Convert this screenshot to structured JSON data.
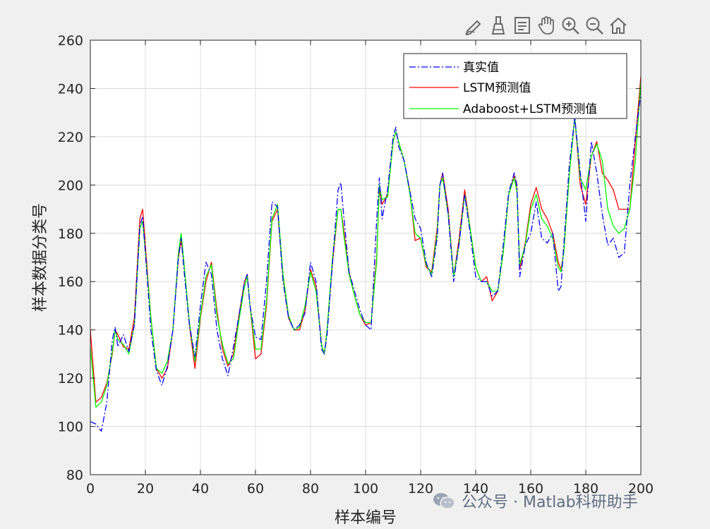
{
  "toolbar": {
    "buttons": [
      {
        "name": "edit-plot-icon"
      },
      {
        "name": "brush-icon"
      },
      {
        "name": "data-tips-icon"
      },
      {
        "name": "pan-hand-icon"
      },
      {
        "name": "zoom-in-icon"
      },
      {
        "name": "zoom-out-icon"
      },
      {
        "name": "home-icon"
      }
    ]
  },
  "watermark": {
    "text": "公众号 · Matlab科研助手"
  },
  "chart_data": {
    "type": "line",
    "title": "",
    "xlabel": "样本编号",
    "ylabel": "样本数据分类号",
    "xlim": [
      0,
      200
    ],
    "ylim": [
      80,
      260
    ],
    "xticks": [
      0,
      20,
      40,
      60,
      80,
      100,
      120,
      140,
      160,
      180,
      200
    ],
    "yticks": [
      80,
      100,
      120,
      140,
      160,
      180,
      200,
      220,
      240,
      260
    ],
    "grid": true,
    "legend_position": "top-right",
    "x": [
      0,
      2,
      4,
      6,
      8,
      9,
      10,
      12,
      14,
      16,
      18,
      19,
      20,
      22,
      24,
      26,
      28,
      30,
      32,
      33,
      34,
      36,
      38,
      40,
      42,
      44,
      46,
      48,
      50,
      52,
      54,
      56,
      57,
      58,
      60,
      62,
      64,
      66,
      68,
      70,
      72,
      74,
      76,
      78,
      80,
      82,
      84,
      85,
      86,
      88,
      90,
      91,
      92,
      94,
      96,
      98,
      100,
      102,
      104,
      105,
      106,
      108,
      110,
      111,
      112,
      114,
      116,
      118,
      120,
      122,
      124,
      126,
      127,
      128,
      130,
      132,
      134,
      136,
      138,
      140,
      142,
      144,
      146,
      148,
      150,
      152,
      154,
      155,
      156,
      158,
      160,
      162,
      164,
      166,
      168,
      170,
      171,
      172,
      174,
      176,
      178,
      180,
      182,
      184,
      186,
      188,
      190,
      192,
      194,
      196,
      198,
      200
    ],
    "series": [
      {
        "name": "真实值",
        "color": "#0000ff",
        "dash": "dashdot",
        "values": [
          102,
          101,
          98,
          110,
          136,
          141,
          133,
          138,
          131,
          142,
          183,
          187,
          172,
          140,
          123,
          117,
          125,
          140,
          170,
          178,
          165,
          142,
          129,
          150,
          168,
          163,
          140,
          128,
          121,
          133,
          146,
          160,
          163,
          150,
          137,
          136,
          160,
          193,
          191,
          160,
          145,
          140,
          142,
          147,
          168,
          160,
          132,
          130,
          138,
          168,
          198,
          201,
          188,
          164,
          156,
          148,
          142,
          140,
          185,
          203,
          186,
          198,
          220,
          224,
          216,
          210,
          198,
          186,
          182,
          168,
          162,
          178,
          200,
          205,
          188,
          160,
          176,
          196,
          180,
          162,
          160,
          160,
          154,
          156,
          175,
          197,
          205,
          200,
          162,
          175,
          180,
          193,
          178,
          176,
          180,
          156,
          158,
          175,
          208,
          228,
          205,
          185,
          218,
          205,
          188,
          175,
          178,
          170,
          172,
          200,
          220,
          238
        ]
      },
      {
        "name": "LSTM预测值",
        "color": "#ff0000",
        "dash": "solid",
        "values": [
          140,
          110,
          112,
          118,
          130,
          140,
          138,
          133,
          132,
          145,
          186,
          190,
          175,
          145,
          124,
          120,
          124,
          140,
          170,
          177,
          168,
          142,
          124,
          145,
          160,
          168,
          148,
          132,
          125,
          130,
          146,
          160,
          163,
          150,
          128,
          130,
          150,
          185,
          190,
          162,
          145,
          140,
          140,
          148,
          165,
          158,
          134,
          130,
          140,
          168,
          190,
          190,
          182,
          164,
          154,
          146,
          142,
          143,
          170,
          198,
          192,
          196,
          218,
          222,
          218,
          210,
          198,
          177,
          178,
          166,
          164,
          182,
          200,
          205,
          190,
          162,
          178,
          198,
          182,
          166,
          160,
          162,
          152,
          156,
          172,
          196,
          204,
          198,
          165,
          176,
          192,
          199,
          190,
          186,
          180,
          168,
          165,
          172,
          204,
          228,
          200,
          192,
          212,
          218,
          205,
          202,
          198,
          190,
          190,
          190,
          218,
          245
        ]
      },
      {
        "name": "Adaboost+LSTM预测值",
        "color": "#00ff00",
        "dash": "solid",
        "values": [
          133,
          108,
          110,
          117,
          131,
          140,
          136,
          134,
          130,
          142,
          182,
          185,
          172,
          145,
          124,
          122,
          127,
          140,
          172,
          180,
          168,
          143,
          127,
          146,
          162,
          167,
          146,
          134,
          126,
          128,
          144,
          158,
          162,
          150,
          132,
          132,
          152,
          186,
          192,
          163,
          146,
          140,
          141,
          150,
          164,
          156,
          134,
          130,
          140,
          170,
          190,
          190,
          180,
          163,
          154,
          146,
          143,
          143,
          168,
          200,
          194,
          195,
          218,
          222,
          218,
          210,
          197,
          180,
          178,
          167,
          163,
          180,
          200,
          203,
          188,
          162,
          176,
          196,
          182,
          166,
          160,
          160,
          156,
          156,
          172,
          196,
          203,
          197,
          167,
          175,
          190,
          196,
          186,
          183,
          178,
          166,
          164,
          172,
          204,
          228,
          203,
          198,
          212,
          217,
          210,
          190,
          183,
          180,
          182,
          190,
          210,
          243
        ]
      }
    ]
  }
}
